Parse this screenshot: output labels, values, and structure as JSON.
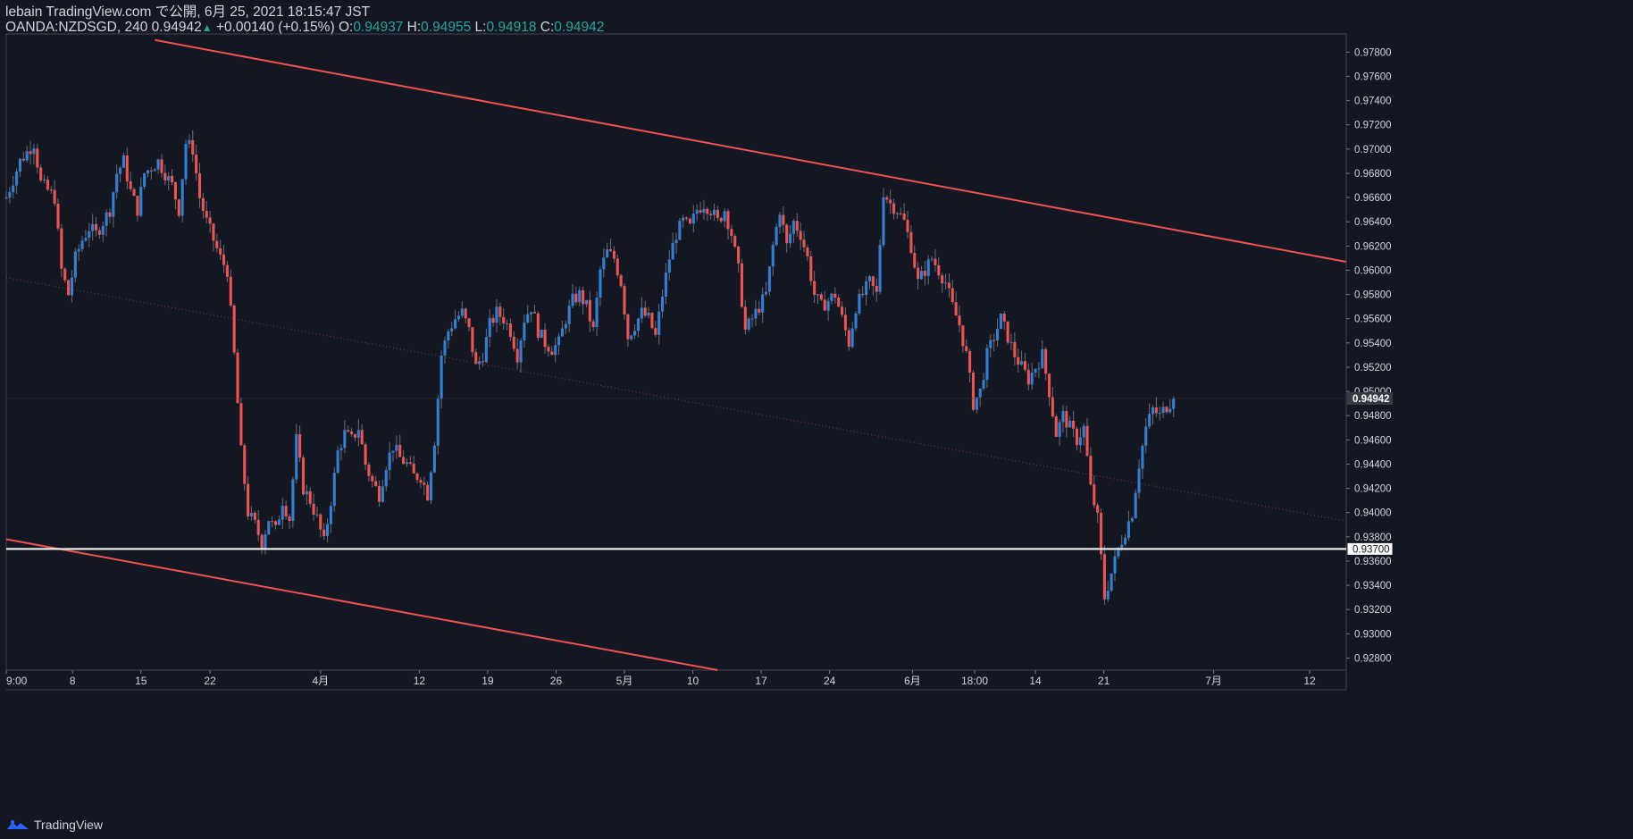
{
  "header": {
    "line1": "lebain TradingView.com で公開, 6月 25, 2021 18:15:47 JST",
    "symbol": "OANDA:NZDSGD, 240",
    "last": "0.94942",
    "change": "+0.00140 (+0.15%)",
    "o_label": "O:",
    "o": "0.94937",
    "h_label": "H:",
    "h": "0.94955",
    "l_label": "L:",
    "l": "0.94918",
    "c_label": "C:",
    "c": "0.94942"
  },
  "watermark": {
    "label": "TradingView"
  },
  "colors": {
    "background": "#131722",
    "up": "#2f80d6",
    "down": "#ef5350",
    "channel": "#f05350",
    "support": "#ffffff",
    "text": "#d1d4dc"
  },
  "chart_data": {
    "type": "candlestick",
    "symbol": "OANDA:NZDSGD",
    "timeframe": "240",
    "ylim": [
      0.927,
      0.9795
    ],
    "y_ticks": [
      "0.92800",
      "0.93000",
      "0.93200",
      "0.93400",
      "0.93600",
      "0.93800",
      "0.94000",
      "0.94200",
      "0.94400",
      "0.94600",
      "0.94800",
      "0.95000",
      "0.95200",
      "0.95400",
      "0.95600",
      "0.95800",
      "0.96000",
      "0.96200",
      "0.96400",
      "0.96600",
      "0.96800",
      "0.97000",
      "0.97200",
      "0.97400",
      "0.97600",
      "0.97800"
    ],
    "x_ticks": [
      {
        "label": "9:00",
        "t": 0
      },
      {
        "label": "8",
        "t": 9.6
      },
      {
        "label": "15",
        "t": 19.5
      },
      {
        "label": "22",
        "t": 29.5
      },
      {
        "label": "4月",
        "t": 45.5
      },
      {
        "label": "12",
        "t": 59.8
      },
      {
        "label": "19",
        "t": 69.7
      },
      {
        "label": "26",
        "t": 79.6
      },
      {
        "label": "5月",
        "t": 89.5
      },
      {
        "label": "10",
        "t": 99.4
      },
      {
        "label": "17",
        "t": 109.3
      },
      {
        "label": "24",
        "t": 119.2
      },
      {
        "label": "6月",
        "t": 131.2
      },
      {
        "label": "18:00",
        "t": 140.2
      },
      {
        "label": "14",
        "t": 149
      },
      {
        "label": "21",
        "t": 158.9
      },
      {
        "label": "7月",
        "t": 174.8
      },
      {
        "label": "12",
        "t": 188.7
      }
    ],
    "close_path": [
      [
        0,
        0.966
      ],
      [
        2,
        0.969
      ],
      [
        4,
        0.9705
      ],
      [
        5,
        0.9672
      ],
      [
        7,
        0.966
      ],
      [
        8,
        0.96
      ],
      [
        9,
        0.958
      ],
      [
        10,
        0.961
      ],
      [
        11,
        0.9625
      ],
      [
        12,
        0.9635
      ],
      [
        13,
        0.963
      ],
      [
        15,
        0.965
      ],
      [
        16,
        0.968
      ],
      [
        17,
        0.969
      ],
      [
        18,
        0.9665
      ],
      [
        19,
        0.965
      ],
      [
        20,
        0.968
      ],
      [
        22,
        0.969
      ],
      [
        23,
        0.968
      ],
      [
        24,
        0.967
      ],
      [
        25,
        0.965
      ],
      [
        26,
        0.9705
      ],
      [
        27,
        0.97
      ],
      [
        28,
        0.966
      ],
      [
        29,
        0.964
      ],
      [
        30,
        0.9625
      ],
      [
        31,
        0.961
      ],
      [
        32,
        0.96
      ],
      [
        33,
        0.953
      ],
      [
        34,
        0.945
      ],
      [
        35,
        0.94
      ],
      [
        36,
        0.939
      ],
      [
        37,
        0.9375
      ],
      [
        38,
        0.9395
      ],
      [
        39,
        0.9385
      ],
      [
        40,
        0.941
      ],
      [
        41,
        0.9395
      ],
      [
        42,
        0.946
      ],
      [
        43,
        0.942
      ],
      [
        44,
        0.941
      ],
      [
        45,
        0.9395
      ],
      [
        46,
        0.9375
      ],
      [
        47,
        0.941
      ],
      [
        48,
        0.945
      ],
      [
        49,
        0.9465
      ],
      [
        50,
        0.946
      ],
      [
        51,
        0.947
      ],
      [
        52,
        0.944
      ],
      [
        53,
        0.9425
      ],
      [
        54,
        0.9415
      ],
      [
        55,
        0.944
      ],
      [
        56,
        0.9455
      ],
      [
        57,
        0.9445
      ],
      [
        58,
        0.944
      ],
      [
        59,
        0.943
      ],
      [
        60,
        0.943
      ],
      [
        61,
        0.9415
      ],
      [
        62,
        0.946
      ],
      [
        63,
        0.953
      ],
      [
        64,
        0.955
      ],
      [
        65,
        0.956
      ],
      [
        66,
        0.9565
      ],
      [
        67,
        0.955
      ],
      [
        68,
        0.952
      ],
      [
        69,
        0.953
      ],
      [
        70,
        0.9555
      ],
      [
        71,
        0.9565
      ],
      [
        72,
        0.956
      ],
      [
        73,
        0.955
      ],
      [
        74,
        0.953
      ],
      [
        75,
        0.956
      ],
      [
        76,
        0.957
      ],
      [
        77,
        0.955
      ],
      [
        78,
        0.954
      ],
      [
        79,
        0.9535
      ],
      [
        80,
        0.954
      ],
      [
        81,
        0.956
      ],
      [
        82,
        0.9575
      ],
      [
        83,
        0.958
      ],
      [
        84,
        0.957
      ],
      [
        85,
        0.955
      ],
      [
        86,
        0.96
      ],
      [
        87,
        0.9615
      ],
      [
        88,
        0.961
      ],
      [
        89,
        0.959
      ],
      [
        90,
        0.9545
      ],
      [
        91,
        0.9555
      ],
      [
        92,
        0.9565
      ],
      [
        93,
        0.956
      ],
      [
        94,
        0.9545
      ],
      [
        95,
        0.958
      ],
      [
        96,
        0.961
      ],
      [
        97,
        0.963
      ],
      [
        98,
        0.964
      ],
      [
        99,
        0.9635
      ],
      [
        100,
        0.965
      ],
      [
        101,
        0.9655
      ],
      [
        102,
        0.965
      ],
      [
        103,
        0.964
      ],
      [
        104,
        0.965
      ],
      [
        105,
        0.963
      ],
      [
        106,
        0.96
      ],
      [
        107,
        0.955
      ],
      [
        108,
        0.956
      ],
      [
        109,
        0.957
      ],
      [
        110,
        0.958
      ],
      [
        111,
        0.962
      ],
      [
        112,
        0.965
      ],
      [
        113,
        0.962
      ],
      [
        114,
        0.964
      ],
      [
        115,
        0.963
      ],
      [
        116,
        0.961
      ],
      [
        117,
        0.958
      ],
      [
        118,
        0.957
      ],
      [
        119,
        0.9575
      ],
      [
        120,
        0.958
      ],
      [
        121,
        0.956
      ],
      [
        122,
        0.954
      ],
      [
        123,
        0.957
      ],
      [
        124,
        0.958
      ],
      [
        125,
        0.959
      ],
      [
        126,
        0.958
      ],
      [
        127,
        0.9665
      ],
      [
        128,
        0.9655
      ],
      [
        129,
        0.965
      ],
      [
        130,
        0.964
      ],
      [
        131,
        0.962
      ],
      [
        132,
        0.959
      ],
      [
        133,
        0.96
      ],
      [
        134,
        0.961
      ],
      [
        135,
        0.96
      ],
      [
        136,
        0.959
      ],
      [
        137,
        0.957
      ],
      [
        138,
        0.9555
      ],
      [
        139,
        0.953
      ],
      [
        140,
        0.949
      ],
      [
        141,
        0.95
      ],
      [
        142,
        0.953
      ],
      [
        143,
        0.9545
      ],
      [
        144,
        0.956
      ],
      [
        145,
        0.9545
      ],
      [
        146,
        0.953
      ],
      [
        147,
        0.952
      ],
      [
        148,
        0.951
      ],
      [
        149,
        0.952
      ],
      [
        150,
        0.953
      ],
      [
        151,
        0.95
      ],
      [
        152,
        0.9465
      ],
      [
        153,
        0.948
      ],
      [
        154,
        0.947
      ],
      [
        155,
        0.946
      ],
      [
        156,
        0.947
      ],
      [
        157,
        0.942
      ],
      [
        158,
        0.9395
      ],
      [
        159,
        0.933
      ],
      [
        160,
        0.935
      ],
      [
        161,
        0.937
      ],
      [
        162,
        0.9385
      ],
      [
        163,
        0.94
      ],
      [
        164,
        0.944
      ],
      [
        165,
        0.947
      ],
      [
        166,
        0.9485
      ],
      [
        167,
        0.948
      ],
      [
        168,
        0.9488
      ],
      [
        169,
        0.9494
      ]
    ],
    "last_price": 0.94942,
    "horizontal_level": {
      "price": 0.937,
      "label": "0.93700"
    },
    "channel_upper": {
      "t1": 21.5,
      "p1": 0.979,
      "t2": 194,
      "p2": 0.9607
    },
    "channel_lower": {
      "t1": 0,
      "p1": 0.9378,
      "t2": 103,
      "p2": 0.927
    },
    "channel_mid": {
      "t1": 0,
      "p1": 0.9594,
      "t2": 194,
      "p2": 0.9393
    }
  }
}
